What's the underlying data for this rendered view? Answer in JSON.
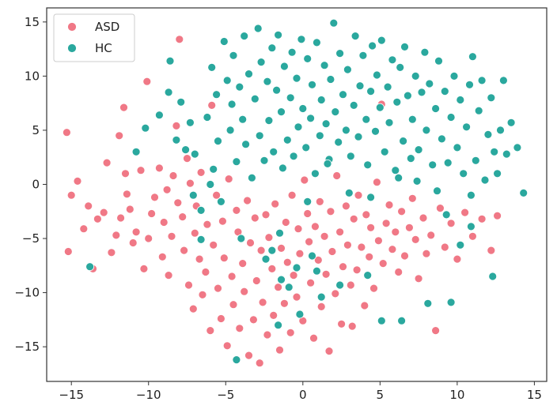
{
  "chart_data": {
    "type": "scatter",
    "title": "",
    "xlabel": "",
    "ylabel": "",
    "xlim": [
      -16.6,
      15.8
    ],
    "ylim": [
      -18.2,
      16.3
    ],
    "xticks": [
      -15,
      -10,
      -5,
      0,
      5,
      10,
      15
    ],
    "yticks": [
      -15,
      -10,
      -5,
      0,
      5,
      10,
      15
    ],
    "grid": false,
    "legend_position": "top-left",
    "series": [
      {
        "name": "ASD",
        "color": "#f07886",
        "points": [
          [
            -15.3,
            4.8
          ],
          [
            -15.2,
            -6.2
          ],
          [
            -15.0,
            -1.0
          ],
          [
            -14.6,
            0.3
          ],
          [
            -14.2,
            -4.1
          ],
          [
            -13.9,
            -2.0
          ],
          [
            -13.6,
            -7.8
          ],
          [
            -13.3,
            -3.2
          ],
          [
            -12.9,
            -2.6
          ],
          [
            -12.7,
            2.0
          ],
          [
            -12.4,
            -6.3
          ],
          [
            -12.1,
            -4.7
          ],
          [
            -11.9,
            4.5
          ],
          [
            -11.8,
            -3.1
          ],
          [
            -11.6,
            7.1
          ],
          [
            -11.5,
            1.0
          ],
          [
            -11.4,
            -0.9
          ],
          [
            -11.2,
            -2.3
          ],
          [
            -11.0,
            -5.4
          ],
          [
            -10.8,
            -4.4
          ],
          [
            -10.5,
            1.3
          ],
          [
            -10.3,
            -7.8
          ],
          [
            -10.1,
            9.5
          ],
          [
            -10.0,
            -5.0
          ],
          [
            -9.8,
            -2.7
          ],
          [
            -9.6,
            -1.2
          ],
          [
            -9.3,
            1.5
          ],
          [
            -9.1,
            -6.7
          ],
          [
            -9.0,
            -3.5
          ],
          [
            -8.8,
            -0.5
          ],
          [
            -8.7,
            -8.4
          ],
          [
            -8.5,
            -4.8
          ],
          [
            -8.4,
            0.8
          ],
          [
            -8.2,
            5.4
          ],
          [
            -8.1,
            -1.7
          ],
          [
            -8.0,
            13.4
          ],
          [
            -7.8,
            -3.0
          ],
          [
            -7.7,
            -6.1
          ],
          [
            -7.5,
            2.4
          ],
          [
            -7.4,
            -9.3
          ],
          [
            -7.3,
            0.1
          ],
          [
            -7.1,
            -11.5
          ],
          [
            -7.0,
            -4.5
          ],
          [
            -6.9,
            -2.0
          ],
          [
            -6.7,
            -6.9
          ],
          [
            -6.6,
            1.1
          ],
          [
            -6.5,
            -10.2
          ],
          [
            -6.3,
            -8.1
          ],
          [
            -6.2,
            -3.7
          ],
          [
            -6.0,
            -13.5
          ],
          [
            -5.9,
            7.3
          ],
          [
            -5.8,
            -5.6
          ],
          [
            -5.6,
            -1.0
          ],
          [
            -5.5,
            -9.6
          ],
          [
            -5.3,
            -12.4
          ],
          [
            -5.2,
            -3.4
          ],
          [
            -5.1,
            -6.8
          ],
          [
            -4.9,
            -14.9
          ],
          [
            -4.8,
            0.5
          ],
          [
            -4.6,
            -8.5
          ],
          [
            -4.5,
            -11.1
          ],
          [
            -4.3,
            -2.4
          ],
          [
            -4.2,
            -4.4
          ],
          [
            -4.1,
            -13.3
          ],
          [
            -3.9,
            -7.3
          ],
          [
            -3.8,
            -9.9
          ],
          [
            -3.6,
            -1.5
          ],
          [
            -3.5,
            -15.8
          ],
          [
            -3.4,
            -5.4
          ],
          [
            -3.2,
            -12.5
          ],
          [
            -3.1,
            -3.1
          ],
          [
            -3.0,
            -8.9
          ],
          [
            -2.8,
            -16.5
          ],
          [
            -2.7,
            -6.1
          ],
          [
            -2.6,
            -10.9
          ],
          [
            -2.4,
            -2.8
          ],
          [
            -2.3,
            -13.9
          ],
          [
            -2.2,
            -4.9
          ],
          [
            -2.0,
            -7.8
          ],
          [
            -1.9,
            -12.1
          ],
          [
            -1.8,
            -1.8
          ],
          [
            -1.6,
            -9.5
          ],
          [
            -1.5,
            -15.3
          ],
          [
            -1.4,
            -5.9
          ],
          [
            -1.2,
            -11.0
          ],
          [
            -1.1,
            -3.5
          ],
          [
            -1.0,
            -7.2
          ],
          [
            -0.8,
            -13.7
          ],
          [
            -0.7,
            -1.0
          ],
          [
            -0.6,
            -8.4
          ],
          [
            -0.4,
            -10.4
          ],
          [
            -0.3,
            -4.1
          ],
          [
            -0.2,
            -6.4
          ],
          [
            0.0,
            -12.6
          ],
          [
            0.1,
            0.4
          ],
          [
            0.3,
            -2.7
          ],
          [
            0.4,
            -5.3
          ],
          [
            0.5,
            -9.1
          ],
          [
            0.7,
            -14.2
          ],
          [
            0.8,
            -3.9
          ],
          [
            1.0,
            -7.0
          ],
          [
            1.1,
            -1.6
          ],
          [
            1.2,
            -11.3
          ],
          [
            1.4,
            -4.8
          ],
          [
            1.5,
            -8.3
          ],
          [
            1.7,
            -15.4
          ],
          [
            1.8,
            -2.5
          ],
          [
            1.9,
            -6.2
          ],
          [
            2.1,
            -10.1
          ],
          [
            2.2,
            0.8
          ],
          [
            2.4,
            -4.4
          ],
          [
            2.5,
            -12.9
          ],
          [
            2.6,
            -7.6
          ],
          [
            2.8,
            -2.0
          ],
          [
            2.9,
            -5.6
          ],
          [
            3.1,
            -9.3
          ],
          [
            3.2,
            -13.1
          ],
          [
            3.3,
            -3.2
          ],
          [
            3.5,
            -7.9
          ],
          [
            3.6,
            -1.0
          ],
          [
            3.8,
            -5.8
          ],
          [
            4.0,
            -11.2
          ],
          [
            4.1,
            -2.8
          ],
          [
            4.3,
            -6.7
          ],
          [
            4.4,
            -4.0
          ],
          [
            4.6,
            -9.6
          ],
          [
            4.8,
            0.2
          ],
          [
            4.9,
            -5.2
          ],
          [
            5.1,
            7.4
          ],
          [
            5.2,
            -7.3
          ],
          [
            5.4,
            -3.6
          ],
          [
            5.6,
            -1.9
          ],
          [
            5.8,
            -6.0
          ],
          [
            6.0,
            -4.4
          ],
          [
            6.2,
            -8.1
          ],
          [
            6.4,
            -2.5
          ],
          [
            6.6,
            -6.6
          ],
          [
            6.9,
            -4.0
          ],
          [
            7.1,
            -1.3
          ],
          [
            7.3,
            -5.1
          ],
          [
            7.5,
            -8.7
          ],
          [
            7.8,
            -3.1
          ],
          [
            8.0,
            -6.4
          ],
          [
            8.3,
            -4.7
          ],
          [
            8.6,
            -13.5
          ],
          [
            8.9,
            -2.2
          ],
          [
            9.2,
            -5.8
          ],
          [
            9.6,
            -3.6
          ],
          [
            10.0,
            -6.9
          ],
          [
            10.5,
            -2.6
          ],
          [
            11.0,
            -4.8
          ],
          [
            11.6,
            -3.2
          ],
          [
            12.2,
            -6.1
          ],
          [
            12.6,
            -2.9
          ]
        ]
      },
      {
        "name": "HC",
        "color": "#2aa89e",
        "points": [
          [
            -13.8,
            -7.6
          ],
          [
            -10.8,
            3.0
          ],
          [
            -10.2,
            5.2
          ],
          [
            -9.3,
            6.4
          ],
          [
            -8.7,
            8.5
          ],
          [
            -8.6,
            11.4
          ],
          [
            -8.2,
            4.1
          ],
          [
            -7.9,
            7.6
          ],
          [
            -7.6,
            3.2
          ],
          [
            -7.3,
            5.7
          ],
          [
            -7.0,
            2.8
          ],
          [
            -6.6,
            -5.1
          ],
          [
            -6.2,
            6.2
          ],
          [
            -5.9,
            10.8
          ],
          [
            -5.8,
            1.4
          ],
          [
            -5.6,
            8.3
          ],
          [
            -5.5,
            4.0
          ],
          [
            -5.3,
            -1.6
          ],
          [
            -5.1,
            13.2
          ],
          [
            -4.9,
            9.6
          ],
          [
            -4.7,
            5.0
          ],
          [
            -4.6,
            7.4
          ],
          [
            -4.5,
            11.9
          ],
          [
            -4.3,
            2.1
          ],
          [
            -4.1,
            9.0
          ],
          [
            -3.9,
            6.0
          ],
          [
            -3.8,
            13.7
          ],
          [
            -3.7,
            3.7
          ],
          [
            -3.5,
            10.2
          ],
          [
            -3.3,
            0.6
          ],
          [
            -3.1,
            7.9
          ],
          [
            -2.9,
            14.4
          ],
          [
            -2.8,
            4.5
          ],
          [
            -2.7,
            11.3
          ],
          [
            -2.5,
            2.2
          ],
          [
            -2.3,
            9.5
          ],
          [
            -2.2,
            5.9
          ],
          [
            -2.0,
            12.6
          ],
          [
            -1.9,
            3.0
          ],
          [
            -1.7,
            8.7
          ],
          [
            -1.6,
            13.8
          ],
          [
            -1.4,
            6.7
          ],
          [
            -1.3,
            1.5
          ],
          [
            -1.2,
            10.9
          ],
          [
            -1.0,
            4.1
          ],
          [
            -0.8,
            8.0
          ],
          [
            -0.7,
            12.2
          ],
          [
            -0.6,
            2.6
          ],
          [
            -0.4,
            9.8
          ],
          [
            -0.3,
            5.3
          ],
          [
            -0.1,
            13.4
          ],
          [
            0.0,
            7.0
          ],
          [
            0.2,
            3.4
          ],
          [
            0.3,
            11.6
          ],
          [
            0.5,
            6.1
          ],
          [
            0.6,
            9.2
          ],
          [
            0.8,
            1.0
          ],
          [
            0.9,
            13.1
          ],
          [
            1.1,
            4.5
          ],
          [
            1.2,
            7.8
          ],
          [
            1.4,
            11.0
          ],
          [
            1.5,
            5.6
          ],
          [
            1.7,
            2.3
          ],
          [
            1.8,
            9.7
          ],
          [
            2.0,
            14.9
          ],
          [
            2.1,
            6.7
          ],
          [
            2.3,
            3.9
          ],
          [
            2.4,
            12.1
          ],
          [
            2.6,
            8.3
          ],
          [
            2.8,
            5.0
          ],
          [
            2.9,
            10.6
          ],
          [
            3.1,
            2.6
          ],
          [
            3.3,
            7.3
          ],
          [
            3.4,
            13.7
          ],
          [
            3.6,
            4.4
          ],
          [
            3.7,
            9.1
          ],
          [
            3.9,
            11.9
          ],
          [
            4.1,
            6.0
          ],
          [
            4.2,
            1.8
          ],
          [
            4.4,
            8.6
          ],
          [
            4.5,
            12.8
          ],
          [
            4.7,
            4.9
          ],
          [
            4.8,
            10.1
          ],
          [
            5.0,
            7.1
          ],
          [
            5.1,
            13.3
          ],
          [
            5.3,
            3.0
          ],
          [
            5.5,
            9.0
          ],
          [
            5.6,
            5.7
          ],
          [
            5.8,
            11.5
          ],
          [
            6.0,
            1.3
          ],
          [
            6.1,
            7.6
          ],
          [
            6.3,
            10.8
          ],
          [
            6.5,
            4.0
          ],
          [
            6.6,
            12.7
          ],
          [
            6.8,
            8.2
          ],
          [
            7.0,
            2.4
          ],
          [
            7.1,
            6.0
          ],
          [
            7.3,
            10.0
          ],
          [
            7.5,
            3.2
          ],
          [
            7.7,
            8.5
          ],
          [
            7.9,
            12.2
          ],
          [
            8.0,
            5.0
          ],
          [
            8.2,
            9.3
          ],
          [
            8.4,
            1.8
          ],
          [
            8.6,
            7.0
          ],
          [
            8.8,
            11.4
          ],
          [
            9.0,
            4.2
          ],
          [
            9.2,
            8.6
          ],
          [
            9.4,
            2.0
          ],
          [
            9.6,
            6.2
          ],
          [
            9.8,
            10.0
          ],
          [
            10.0,
            3.4
          ],
          [
            10.2,
            7.8
          ],
          [
            10.4,
            1.0
          ],
          [
            10.6,
            5.3
          ],
          [
            10.8,
            9.2
          ],
          [
            11.0,
            11.8
          ],
          [
            11.2,
            2.2
          ],
          [
            11.4,
            6.8
          ],
          [
            11.6,
            9.6
          ],
          [
            11.8,
            0.4
          ],
          [
            12.0,
            4.6
          ],
          [
            12.2,
            8.0
          ],
          [
            12.4,
            3.0
          ],
          [
            12.6,
            1.0
          ],
          [
            12.8,
            5.0
          ],
          [
            13.0,
            9.6
          ],
          [
            13.2,
            2.8
          ],
          [
            13.5,
            5.7
          ],
          [
            13.9,
            3.4
          ],
          [
            14.3,
            -0.8
          ],
          [
            12.3,
            -8.5
          ],
          [
            10.9,
            -3.9
          ],
          [
            10.2,
            -5.6
          ],
          [
            9.6,
            -10.9
          ],
          [
            8.1,
            -11.0
          ],
          [
            6.4,
            -12.6
          ],
          [
            5.1,
            -12.6
          ],
          [
            4.2,
            -8.4
          ],
          [
            2.4,
            -9.3
          ],
          [
            1.2,
            -10.4
          ],
          [
            0.9,
            -8.0
          ],
          [
            0.6,
            -6.6
          ],
          [
            -0.2,
            -12.0
          ],
          [
            -0.4,
            -7.7
          ],
          [
            -0.9,
            -9.5
          ],
          [
            -1.4,
            -8.8
          ],
          [
            -1.6,
            -13.0
          ],
          [
            -2.0,
            -6.1
          ],
          [
            -2.4,
            -6.9
          ],
          [
            -4.3,
            -16.2
          ],
          [
            -6.6,
            -2.4
          ],
          [
            -4.0,
            -5.0
          ],
          [
            -1.5,
            -4.5
          ],
          [
            0.3,
            -1.6
          ],
          [
            1.6,
            1.9
          ],
          [
            3.0,
            -0.8
          ],
          [
            4.4,
            -1.2
          ],
          [
            6.2,
            0.6
          ],
          [
            7.4,
            0.3
          ],
          [
            8.7,
            -0.6
          ],
          [
            9.3,
            -2.8
          ],
          [
            10.9,
            -1.0
          ],
          [
            -7.1,
            -1.0
          ],
          [
            -6.0,
            0.0
          ]
        ]
      }
    ]
  }
}
